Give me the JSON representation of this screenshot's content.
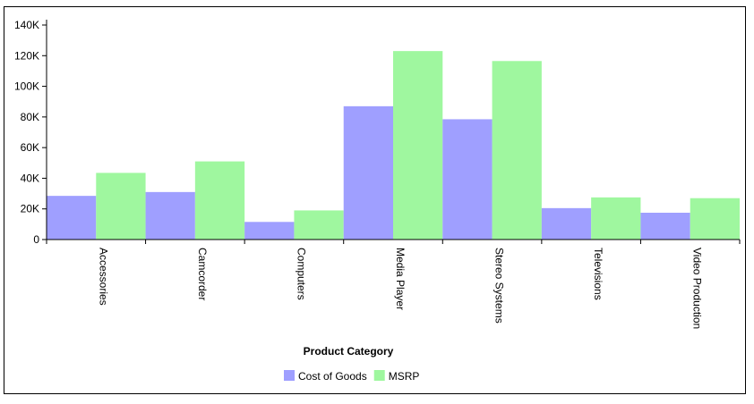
{
  "chart_data": {
    "type": "bar",
    "xlabel": "Product Category",
    "ylabel": "",
    "ylim": [
      0,
      140000
    ],
    "yticks": [
      0,
      20000,
      40000,
      60000,
      80000,
      100000,
      120000,
      140000
    ],
    "ytick_labels": [
      "0",
      "20K",
      "40K",
      "60K",
      "80K",
      "100K",
      "120K",
      "140K"
    ],
    "categories": [
      "Accessories",
      "Camcorder",
      "Computers",
      "Media Player",
      "Stereo Systems",
      "Televisions",
      "Video Production"
    ],
    "series": [
      {
        "name": "Cost of Goods",
        "color": "#9f9fff",
        "values": [
          28500,
          31000,
          11500,
          87000,
          78500,
          20500,
          17500
        ]
      },
      {
        "name": "MSRP",
        "color": "#9ff79f",
        "values": [
          43500,
          51000,
          19000,
          123000,
          116500,
          27500,
          27000
        ]
      }
    ],
    "grid": false,
    "legend_position": "bottom"
  }
}
